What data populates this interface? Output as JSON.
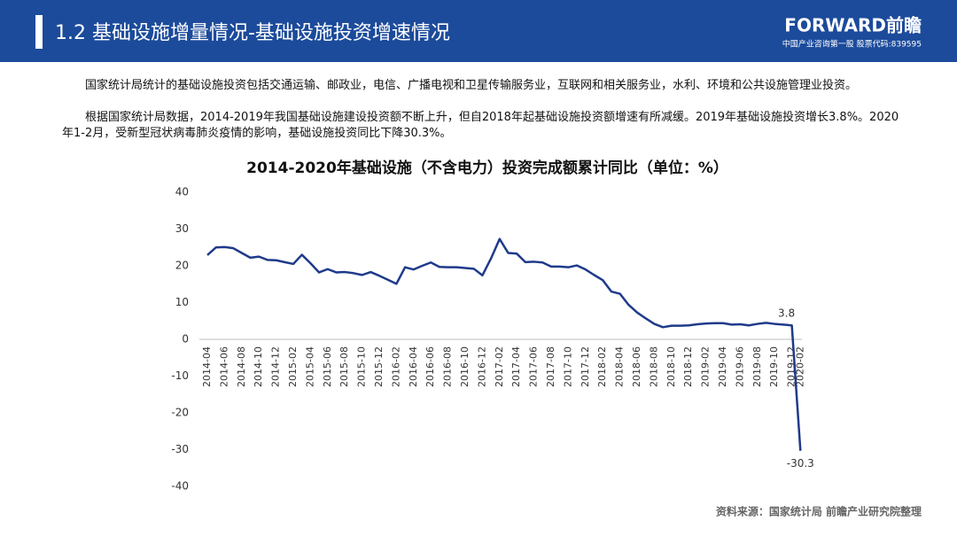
{
  "header": {
    "title": "1.2 基础设施增量情况-基础设施投资增速情况",
    "logo": "FORWARD前瞻",
    "logo_sub": "中国产业咨询第一股 股票代码:839595"
  },
  "body": {
    "paragraphs": [
      "国家统计局统计的基础设施投资包括交通运输、邮政业，电信、广播电视和卫星传输服务业，互联网和相关服务业，水利、环境和公共设施管理业投资。",
      "根据国家统计局数据，2014-2019年我国基础设施建设投资额不断上升，但自2018年起基础设施投资额增速有所减缓。2019年基础设施投资增长3.8%。2020年1-2月，受新型冠状病毒肺炎疫情的影响，基础设施投资同比下降30.3%。"
    ]
  },
  "chart_data": {
    "type": "line",
    "title": "2014-2020年基础设施（不含电力）投资完成额累计同比（单位：%）",
    "color": "#1f3a8a",
    "categories": [
      "2014-04",
      null,
      "2014-06",
      null,
      "2014-08",
      null,
      "2014-10",
      null,
      "2014-12",
      null,
      "2015-02",
      null,
      "2015-04",
      null,
      "2015-06",
      null,
      "2015-08",
      null,
      "2015-10",
      null,
      "2015-12",
      null,
      "2016-02",
      null,
      "2016-04",
      null,
      "2016-06",
      null,
      "2016-08",
      null,
      "2016-10",
      null,
      "2016-12",
      null,
      "2017-02",
      null,
      "2017-04",
      null,
      "2017-06",
      null,
      "2017-08",
      null,
      "2017-10",
      null,
      "2017-12",
      null,
      "2018-02",
      null,
      "2018-04",
      null,
      "2018-06",
      null,
      "2018-08",
      null,
      "2018-10",
      null,
      "2018-12",
      null,
      "2019-02",
      null,
      "2019-04",
      null,
      "2019-06",
      null,
      "2019-08",
      null,
      "2019-10",
      null,
      "2019-12",
      "2020-02"
    ],
    "values": [
      22.9,
      25,
      25.1,
      24.8,
      23.5,
      22.2,
      22.5,
      21.6,
      21.5,
      21,
      20.5,
      23,
      20.7,
      18.2,
      19.1,
      18.2,
      18.3,
      18,
      17.5,
      18.3,
      17.3,
      16.2,
      15.1,
      19.6,
      19,
      20,
      20.9,
      19.7,
      19.6,
      19.6,
      19.4,
      19.2,
      17.4,
      22,
      27.3,
      23.5,
      23.3,
      21,
      21.1,
      20.9,
      19.8,
      19.8,
      19.6,
      20.1,
      19,
      17.5,
      16.1,
      13,
      12.4,
      9.4,
      7.3,
      5.7,
      4.2,
      3.3,
      3.7,
      3.7,
      3.8,
      4.1,
      4.3,
      4.4,
      4.4,
      4,
      4.1,
      3.8,
      4.2,
      4.5,
      4.2,
      4,
      3.8,
      -30.3
    ],
    "value_labels": [
      null,
      null,
      null,
      null,
      null,
      null,
      null,
      null,
      null,
      null,
      null,
      null,
      null,
      null,
      null,
      null,
      null,
      null,
      null,
      null,
      null,
      null,
      null,
      null,
      null,
      null,
      null,
      null,
      null,
      null,
      null,
      null,
      null,
      null,
      null,
      null,
      null,
      null,
      null,
      null,
      null,
      null,
      null,
      null,
      null,
      null,
      null,
      null,
      null,
      null,
      null,
      null,
      null,
      null,
      null,
      null,
      null,
      null,
      null,
      null,
      null,
      null,
      null,
      null,
      null,
      null,
      null,
      null,
      "3.8",
      "-30.3"
    ],
    "ylim": [
      -40,
      40
    ],
    "yticks": [
      -40,
      -30,
      -20,
      -10,
      0,
      10,
      20,
      30,
      40
    ],
    "grid": false
  },
  "source": "资料来源：国家统计局 前瞻产业研究院整理"
}
